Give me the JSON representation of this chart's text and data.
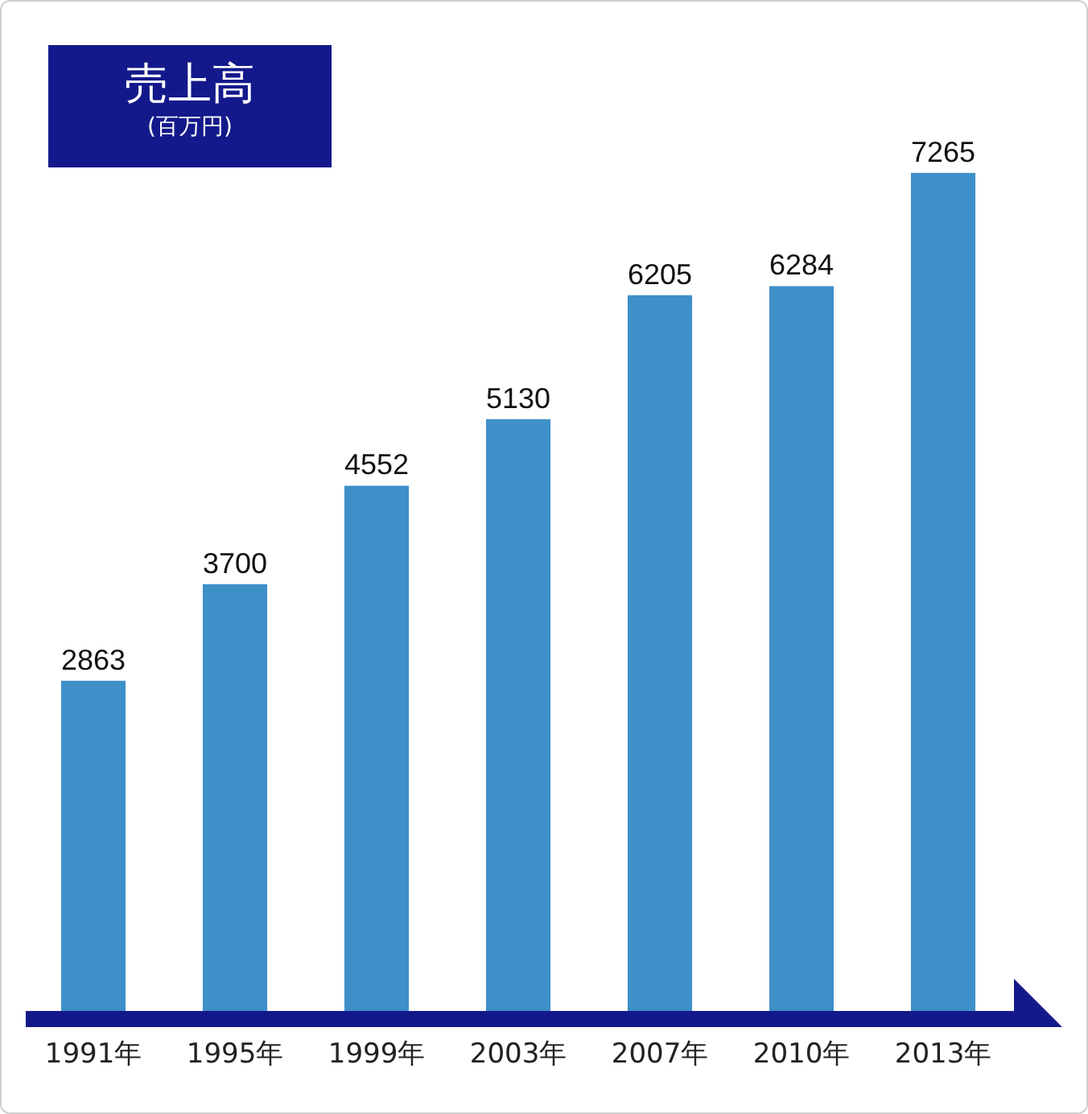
{
  "chart_data": {
    "type": "bar",
    "title": "売上高",
    "subtitle": "(百万円)",
    "categories": [
      "1991年",
      "1995年",
      "1999年",
      "2003年",
      "2007年",
      "2010年",
      "2013年"
    ],
    "values": [
      2863,
      3700,
      4552,
      5130,
      6205,
      6284,
      7265
    ],
    "color": "#3f8fc9",
    "data_labels": true,
    "tick_labels": "x"
  }
}
